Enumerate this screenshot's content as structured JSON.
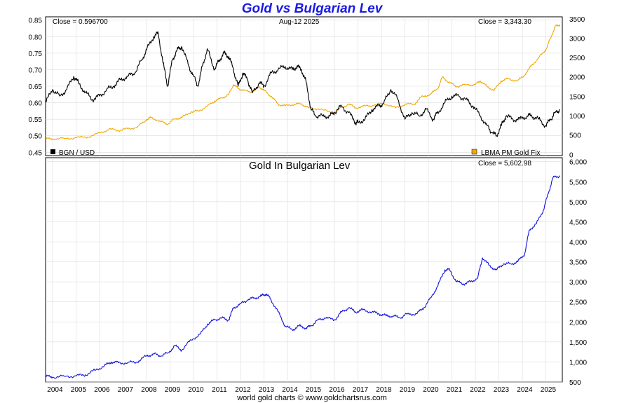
{
  "header": {
    "title": "Gold vs Bulgarian Lev",
    "date": "Aug-12  2025"
  },
  "footer": {
    "credit": "world gold charts © www.goldchartsrus.com"
  },
  "colors": {
    "lev": "#000000",
    "gold": "#f0a800",
    "gold_in_lev": "#1010dd",
    "grid": "#dcdcdc",
    "title": "#1a1ae6"
  },
  "chart_data": [
    {
      "type": "line",
      "title": "Gold vs Bulgarian Lev",
      "date_label": "Aug-12  2025",
      "x_ticks": [
        "2004",
        "2005",
        "2006",
        "2007",
        "2008",
        "2009",
        "2010",
        "2011",
        "2012",
        "2013",
        "2014",
        "2015",
        "2016",
        "2017",
        "2018",
        "2019",
        "2020",
        "2021",
        "2022",
        "2023",
        "2024",
        "2025"
      ],
      "xlim": [
        2003.7,
        2025.7
      ],
      "y_left": {
        "lim": [
          0.44,
          0.86
        ],
        "ticks": [
          "0.45",
          "0.50",
          "0.55",
          "0.60",
          "0.65",
          "0.70",
          "0.75",
          "0.80",
          "0.85"
        ]
      },
      "y_right": {
        "lim": [
          -30,
          3550
        ],
        "ticks": [
          "0",
          "500",
          "1000",
          "1500",
          "2000",
          "2500",
          "3000",
          "3500"
        ]
      },
      "grid": true,
      "series": [
        {
          "name": "BGN / USD",
          "axis": "left",
          "close_label": "Close = 0.596700",
          "legend_position": "bottom-left",
          "x": [
            2003.7,
            2004.0,
            2004.3,
            2004.6,
            2004.9,
            2005.1,
            2005.4,
            2005.7,
            2006.0,
            2006.3,
            2006.6,
            2006.9,
            2007.2,
            2007.5,
            2007.8,
            2008.0,
            2008.3,
            2008.5,
            2008.7,
            2008.9,
            2009.1,
            2009.3,
            2009.5,
            2009.8,
            2010.0,
            2010.2,
            2010.4,
            2010.6,
            2010.9,
            2011.1,
            2011.3,
            2011.5,
            2011.7,
            2011.9,
            2012.1,
            2012.3,
            2012.5,
            2012.8,
            2013.0,
            2013.3,
            2013.6,
            2013.9,
            2014.2,
            2014.4,
            2014.6,
            2014.8,
            2015.0,
            2015.2,
            2015.5,
            2015.8,
            2016.0,
            2016.3,
            2016.6,
            2016.9,
            2017.0,
            2017.3,
            2017.6,
            2017.9,
            2018.1,
            2018.4,
            2018.7,
            2019.0,
            2019.3,
            2019.6,
            2019.9,
            2020.2,
            2020.4,
            2020.7,
            2021.0,
            2021.3,
            2021.6,
            2021.9,
            2022.2,
            2022.5,
            2022.7,
            2022.9,
            2023.1,
            2023.3,
            2023.6,
            2023.9,
            2024.2,
            2024.4,
            2024.7,
            2025.0,
            2025.2,
            2025.4,
            2025.6
          ],
          "y": [
            0.6,
            0.64,
            0.62,
            0.64,
            0.68,
            0.66,
            0.63,
            0.61,
            0.62,
            0.64,
            0.65,
            0.67,
            0.68,
            0.69,
            0.73,
            0.76,
            0.8,
            0.81,
            0.72,
            0.65,
            0.73,
            0.76,
            0.77,
            0.71,
            0.68,
            0.65,
            0.72,
            0.76,
            0.7,
            0.73,
            0.75,
            0.74,
            0.7,
            0.65,
            0.69,
            0.67,
            0.63,
            0.66,
            0.65,
            0.69,
            0.7,
            0.71,
            0.7,
            0.71,
            0.7,
            0.66,
            0.58,
            0.56,
            0.56,
            0.56,
            0.57,
            0.59,
            0.57,
            0.54,
            0.54,
            0.55,
            0.58,
            0.59,
            0.6,
            0.64,
            0.61,
            0.55,
            0.57,
            0.56,
            0.58,
            0.55,
            0.57,
            0.6,
            0.62,
            0.62,
            0.61,
            0.59,
            0.56,
            0.53,
            0.51,
            0.5,
            0.53,
            0.56,
            0.55,
            0.55,
            0.56,
            0.56,
            0.55,
            0.53,
            0.55,
            0.57,
            0.58
          ]
        },
        {
          "name": "LBMA PM Gold Fix",
          "axis": "right",
          "close_label": "Close = 3,343.30",
          "legend_position": "bottom-right",
          "x": [
            2003.7,
            2004.0,
            2004.5,
            2005.0,
            2005.5,
            2006.0,
            2006.4,
            2006.8,
            2007.2,
            2007.6,
            2008.0,
            2008.2,
            2008.6,
            2008.9,
            2009.2,
            2009.5,
            2009.9,
            2010.2,
            2010.6,
            2010.9,
            2011.2,
            2011.5,
            2011.7,
            2011.9,
            2012.2,
            2012.5,
            2012.8,
            2013.0,
            2013.3,
            2013.6,
            2013.9,
            2014.3,
            2014.6,
            2014.9,
            2015.3,
            2015.9,
            2016.2,
            2016.6,
            2016.9,
            2017.3,
            2017.7,
            2018.1,
            2018.6,
            2019.0,
            2019.4,
            2019.7,
            2020.1,
            2020.4,
            2020.6,
            2020.9,
            2021.2,
            2021.6,
            2022.0,
            2022.2,
            2022.5,
            2022.8,
            2023.1,
            2023.4,
            2023.8,
            2024.1,
            2024.4,
            2024.7,
            2025.0,
            2025.2,
            2025.4,
            2025.6
          ],
          "y": [
            400,
            400,
            410,
            430,
            450,
            550,
            650,
            620,
            660,
            700,
            900,
            950,
            850,
            780,
            920,
            950,
            1100,
            1120,
            1250,
            1380,
            1450,
            1550,
            1800,
            1700,
            1650,
            1600,
            1750,
            1650,
            1500,
            1300,
            1250,
            1300,
            1300,
            1200,
            1180,
            1070,
            1180,
            1300,
            1200,
            1250,
            1270,
            1320,
            1200,
            1290,
            1300,
            1480,
            1560,
            1700,
            2000,
            1850,
            1750,
            1800,
            1800,
            1900,
            1750,
            1650,
            1900,
            1950,
            1900,
            2050,
            2300,
            2500,
            2700,
            3000,
            3300,
            3350
          ]
        }
      ]
    },
    {
      "type": "line",
      "title": "Gold In Bulgarian Lev",
      "x_ticks": [
        "2004",
        "2005",
        "2006",
        "2007",
        "2008",
        "2009",
        "2010",
        "2011",
        "2012",
        "2013",
        "2014",
        "2015",
        "2016",
        "2017",
        "2018",
        "2019",
        "2020",
        "2021",
        "2022",
        "2023",
        "2024",
        "2025"
      ],
      "xlim": [
        2003.7,
        2025.7
      ],
      "ylim": [
        500,
        6100
      ],
      "y_ticks": [
        "500",
        "1,000",
        "1,500",
        "2,000",
        "2,500",
        "3,000",
        "3,500",
        "4,000",
        "4,500",
        "5,000",
        "5,500",
        "6,000"
      ],
      "grid": true,
      "series": [
        {
          "name": "Gold In Bulgarian Lev",
          "close_label": "Close = 5,602.98",
          "x": [
            2003.7,
            2004.0,
            2004.5,
            2005.0,
            2005.4,
            2005.8,
            2006.2,
            2006.5,
            2006.8,
            2007.2,
            2007.6,
            2008.0,
            2008.3,
            2008.6,
            2008.9,
            2009.2,
            2009.5,
            2009.9,
            2010.3,
            2010.6,
            2010.9,
            2011.2,
            2011.5,
            2011.7,
            2012.0,
            2012.3,
            2012.6,
            2012.9,
            2013.1,
            2013.3,
            2013.6,
            2013.9,
            2014.2,
            2014.5,
            2014.8,
            2015.0,
            2015.3,
            2015.6,
            2016.0,
            2016.3,
            2016.6,
            2016.9,
            2017.2,
            2017.6,
            2017.9,
            2018.2,
            2018.5,
            2018.8,
            2019.1,
            2019.5,
            2019.8,
            2020.1,
            2020.4,
            2020.7,
            2020.9,
            2021.2,
            2021.5,
            2021.8,
            2022.1,
            2022.3,
            2022.6,
            2022.9,
            2023.2,
            2023.5,
            2023.8,
            2024.1,
            2024.3,
            2024.6,
            2024.9,
            2025.1,
            2025.3,
            2025.6
          ],
          "y": [
            640,
            620,
            640,
            650,
            680,
            790,
            900,
            1000,
            980,
            980,
            1000,
            1150,
            1200,
            1150,
            1220,
            1400,
            1300,
            1550,
            1700,
            1950,
            2050,
            2100,
            2050,
            2350,
            2450,
            2550,
            2600,
            2650,
            2700,
            2550,
            2250,
            1900,
            1800,
            1900,
            1850,
            1900,
            2050,
            2100,
            2050,
            2250,
            2350,
            2250,
            2300,
            2250,
            2200,
            2150,
            2150,
            2100,
            2200,
            2200,
            2350,
            2600,
            2900,
            3300,
            3300,
            3000,
            2950,
            3000,
            3100,
            3600,
            3400,
            3300,
            3450,
            3450,
            3500,
            3700,
            4300,
            4450,
            4800,
            5200,
            5600,
            5650
          ]
        }
      ]
    }
  ]
}
